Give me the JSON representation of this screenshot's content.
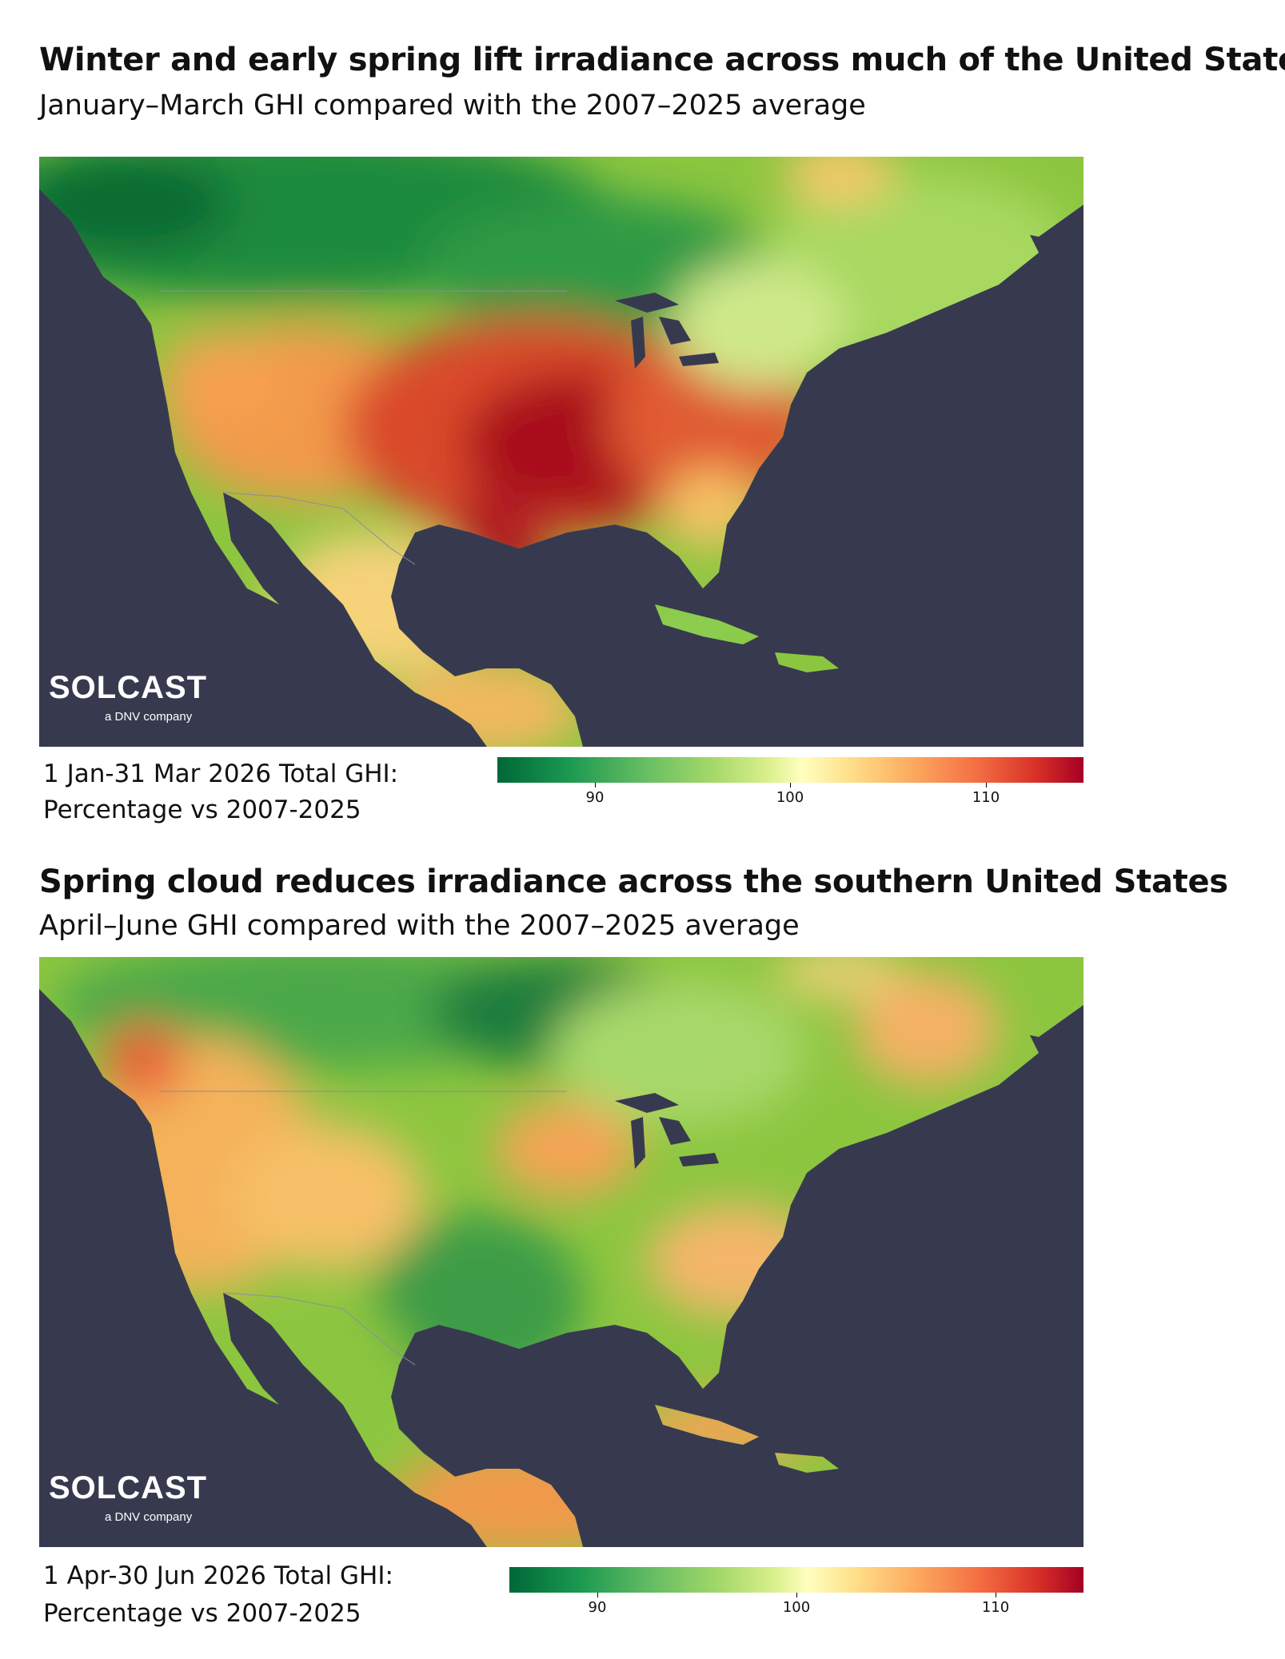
{
  "colors": {
    "ocean": "#373a4f",
    "scale_low": "#006837",
    "scale_mid": "#ffffbf",
    "scale_high": "#a50026"
  },
  "panels": [
    {
      "title": "Winter and early spring lift irradiance across much of the United States",
      "subtitle": "January–March GHI compared with the 2007–2025 average",
      "logo": {
        "word": "SOLCAST",
        "sub": "a DNV company"
      },
      "caption": {
        "line1": "1 Jan-31 Mar 2026 Total GHI:",
        "line2": "Percentage vs 2007-2025"
      },
      "colorbar": {
        "min": 85,
        "max": 115,
        "ticks": [
          "90",
          "100",
          "110"
        ]
      }
    },
    {
      "title": "Spring cloud reduces irradiance across the southern United States",
      "subtitle": "April–June GHI compared with the 2007–2025 average",
      "logo": {
        "word": "SOLCAST",
        "sub": "a DNV company"
      },
      "caption": {
        "line1": "1 Apr-30 Jun 2026 Total GHI:",
        "line2": "Percentage vs 2007-2025"
      },
      "colorbar": {
        "min": 85,
        "max": 115,
        "ticks": [
          "90",
          "100",
          "110"
        ]
      }
    }
  ]
}
